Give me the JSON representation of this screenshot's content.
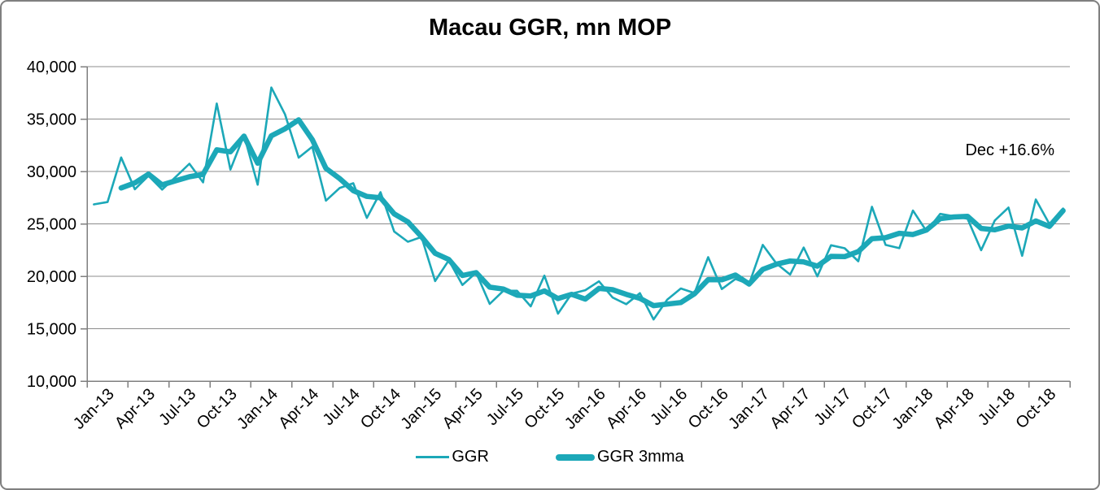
{
  "title": "Macau GGR, mn MOP",
  "annotation": "Dec +16.6%",
  "colors": {
    "series": "#1CA8B8",
    "gridline": "#8c8c8c",
    "axis": "#7f7f7f",
    "text": "#000000",
    "background": "#ffffff"
  },
  "legend": {
    "position": "bottom",
    "items": [
      {
        "label": "GGR",
        "style": "thin-line"
      },
      {
        "label": "GGR 3mma",
        "style": "thick-line"
      }
    ]
  },
  "chart_data": {
    "type": "line",
    "title": "Macau GGR, mn MOP",
    "unit": "mn MOP",
    "grid": "horizontal",
    "legend_position": "bottom",
    "annotation": {
      "text": "Dec +16.6%",
      "position": "top-right"
    },
    "ylim": [
      10000,
      40000
    ],
    "yticks": [
      10000,
      15000,
      20000,
      25000,
      30000,
      35000,
      40000
    ],
    "yticklabels": [
      "10,000",
      "15,000",
      "20,000",
      "25,000",
      "30,000",
      "35,000",
      "40,000"
    ],
    "xticklabels": [
      "Jan-13",
      "Apr-13",
      "Jul-13",
      "Oct-13",
      "Jan-14",
      "Apr-14",
      "Jul-14",
      "Oct-14",
      "Jan-15",
      "Apr-15",
      "Jul-15",
      "Oct-15",
      "Jan-16",
      "Apr-16",
      "Jul-16",
      "Oct-16",
      "Jan-17",
      "Apr-17",
      "Jul-17",
      "Oct-17",
      "Jan-18",
      "Apr-18",
      "Jul-18",
      "Oct-18"
    ],
    "x": [
      "Jan-13",
      "Feb-13",
      "Mar-13",
      "Apr-13",
      "May-13",
      "Jun-13",
      "Jul-13",
      "Aug-13",
      "Sep-13",
      "Oct-13",
      "Nov-13",
      "Dec-13",
      "Jan-14",
      "Feb-14",
      "Mar-14",
      "Apr-14",
      "May-14",
      "Jun-14",
      "Jul-14",
      "Aug-14",
      "Sep-14",
      "Oct-14",
      "Nov-14",
      "Dec-14",
      "Jan-15",
      "Feb-15",
      "Mar-15",
      "Apr-15",
      "May-15",
      "Jun-15",
      "Jul-15",
      "Aug-15",
      "Sep-15",
      "Oct-15",
      "Nov-15",
      "Dec-15",
      "Jan-16",
      "Feb-16",
      "Mar-16",
      "Apr-16",
      "May-16",
      "Jun-16",
      "Jul-16",
      "Aug-16",
      "Sep-16",
      "Oct-16",
      "Nov-16",
      "Dec-16",
      "Jan-17",
      "Feb-17",
      "Mar-17",
      "Apr-17",
      "May-17",
      "Jun-17",
      "Jul-17",
      "Aug-17",
      "Sep-17",
      "Oct-17",
      "Nov-17",
      "Dec-17",
      "Jan-18",
      "Feb-18",
      "Mar-18",
      "Apr-18",
      "May-18",
      "Jun-18",
      "Jul-18",
      "Aug-18",
      "Sep-18",
      "Oct-18",
      "Nov-18",
      "Dec-18"
    ],
    "series": [
      {
        "name": "GGR",
        "style": "thin",
        "values": [
          26864,
          27084,
          31336,
          28305,
          29589,
          28269,
          29485,
          30737,
          28963,
          36477,
          30179,
          33460,
          28739,
          38007,
          35453,
          31318,
          32354,
          27215,
          28416,
          28877,
          25564,
          28025,
          24269,
          23293,
          23748,
          19542,
          21525,
          19167,
          20350,
          17365,
          18624,
          18620,
          17130,
          20062,
          16437,
          18342,
          18674,
          19518,
          17980,
          17340,
          18388,
          15884,
          17774,
          18837,
          18401,
          21818,
          18786,
          19743,
          19255,
          22989,
          21215,
          20164,
          22744,
          19992,
          22965,
          22675,
          21435,
          26631,
          22992,
          22685,
          26268,
          24292,
          25952,
          25727,
          25488,
          22490,
          25327,
          26559,
          21952,
          27328,
          24995,
          26468
        ]
      },
      {
        "name": "GGR 3mma",
        "style": "thick",
        "values": [
          null,
          null,
          28428,
          28908,
          29743,
          28721,
          29114,
          29497,
          29728,
          32059,
          31873,
          33372,
          30793,
          33402,
          34066,
          34926,
          33042,
          30296,
          29328,
          28169,
          27619,
          27489,
          25953,
          25196,
          23770,
          22194,
          21605,
          20078,
          20347,
          18961,
          18780,
          18203,
          18125,
          18604,
          17876,
          18280,
          17818,
          18845,
          18724,
          18279,
          17903,
          17204,
          17349,
          17498,
          18337,
          19685,
          19668,
          20116,
          19261,
          20662,
          21153,
          21456,
          21374,
          20967,
          21900,
          21877,
          22358,
          23580,
          23686,
          24103,
          23982,
          24415,
          25504,
          25657,
          25722,
          24568,
          24435,
          24792,
          24613,
          25280,
          24758,
          26264
        ]
      }
    ]
  }
}
